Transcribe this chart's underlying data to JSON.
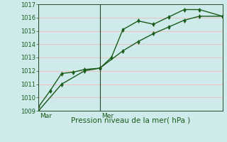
{
  "bg_color": "#ceeaea",
  "grid_color": "#f0c0c0",
  "line_color": "#1a5c1a",
  "axis_color": "#2a4a2a",
  "text_color": "#1a5c1a",
  "xlabel": "Pression niveau de la mer( hPa )",
  "ylim": [
    1009,
    1017
  ],
  "yticks": [
    1009,
    1010,
    1011,
    1012,
    1013,
    1014,
    1015,
    1016,
    1017
  ],
  "xlim": [
    0,
    24
  ],
  "day_markers": [
    {
      "label": "Mar",
      "x": 0
    },
    {
      "label": "Mer",
      "x": 8
    }
  ],
  "series1_x": [
    0,
    1.5,
    3,
    4.5,
    6,
    8,
    9.5,
    11,
    13,
    15,
    17,
    19,
    21,
    24
  ],
  "series1_y": [
    1009.3,
    1010.5,
    1011.8,
    1011.9,
    1012.1,
    1012.2,
    1013.0,
    1015.1,
    1015.75,
    1015.5,
    1016.05,
    1016.6,
    1016.6,
    1016.1
  ],
  "series2_x": [
    0,
    3,
    6,
    8,
    11,
    13,
    15,
    17,
    19,
    21,
    24
  ],
  "series2_y": [
    1009.0,
    1011.0,
    1012.0,
    1012.2,
    1013.5,
    1014.2,
    1014.8,
    1015.3,
    1015.8,
    1016.1,
    1016.1
  ],
  "marker_size": 3,
  "linewidth": 1.0,
  "ytick_fontsize": 6.0,
  "xlabel_fontsize": 7.5,
  "tick_label_fontsize": 6.5
}
